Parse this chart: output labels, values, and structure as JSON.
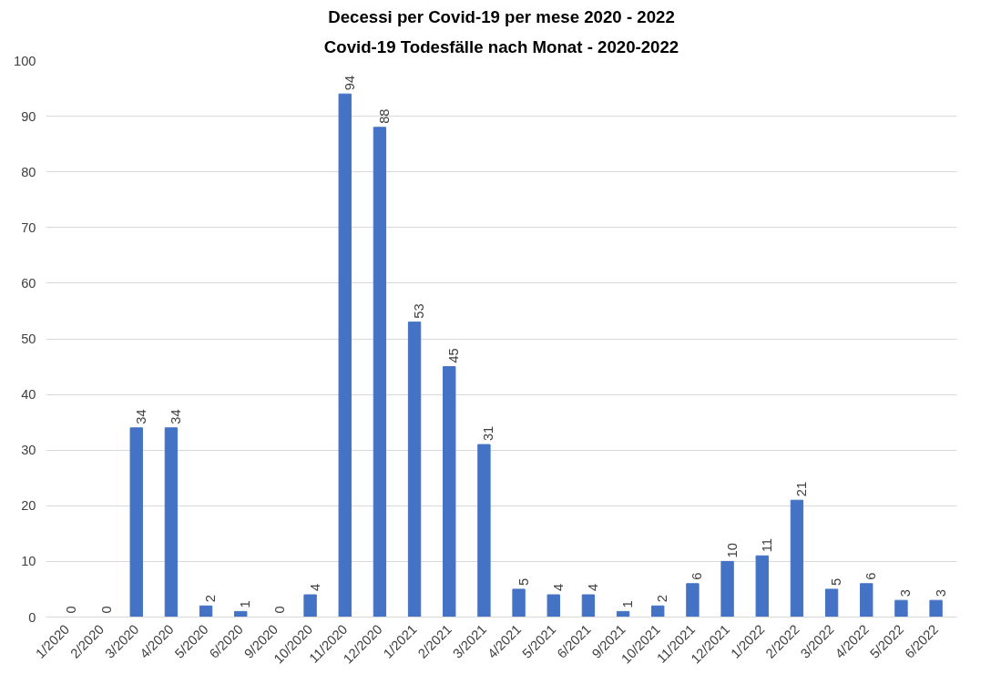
{
  "chart_data": {
    "type": "bar",
    "title": "Decessi per Covid-19 per mese 2020 - 2022",
    "subtitle": "Covid-19 Todesfälle nach Monat - 2020-2022",
    "categories": [
      "1/2020",
      "2/2020",
      "3/2020",
      "4/2020",
      "5/2020",
      "6/2020",
      "9/2020",
      "10/2020",
      "11/2020",
      "12/2020",
      "1/2021",
      "2/2021",
      "3/2021",
      "4/2021",
      "5/2021",
      "6/2021",
      "9/2021",
      "10/2021",
      "11/2021",
      "12/2021",
      "1/2022",
      "2/2022",
      "3/2022",
      "4/2022",
      "5/2022",
      "6/2022"
    ],
    "values": [
      0,
      0,
      34,
      34,
      2,
      1,
      0,
      4,
      94,
      88,
      53,
      45,
      31,
      5,
      4,
      4,
      1,
      2,
      6,
      10,
      11,
      21,
      5,
      6,
      3,
      3
    ],
    "color": "#4472c4",
    "ylim": [
      0,
      100
    ],
    "yticks": [
      0,
      10,
      20,
      30,
      40,
      50,
      60,
      70,
      80,
      90,
      100
    ],
    "grid": "y",
    "data_labels": true
  }
}
